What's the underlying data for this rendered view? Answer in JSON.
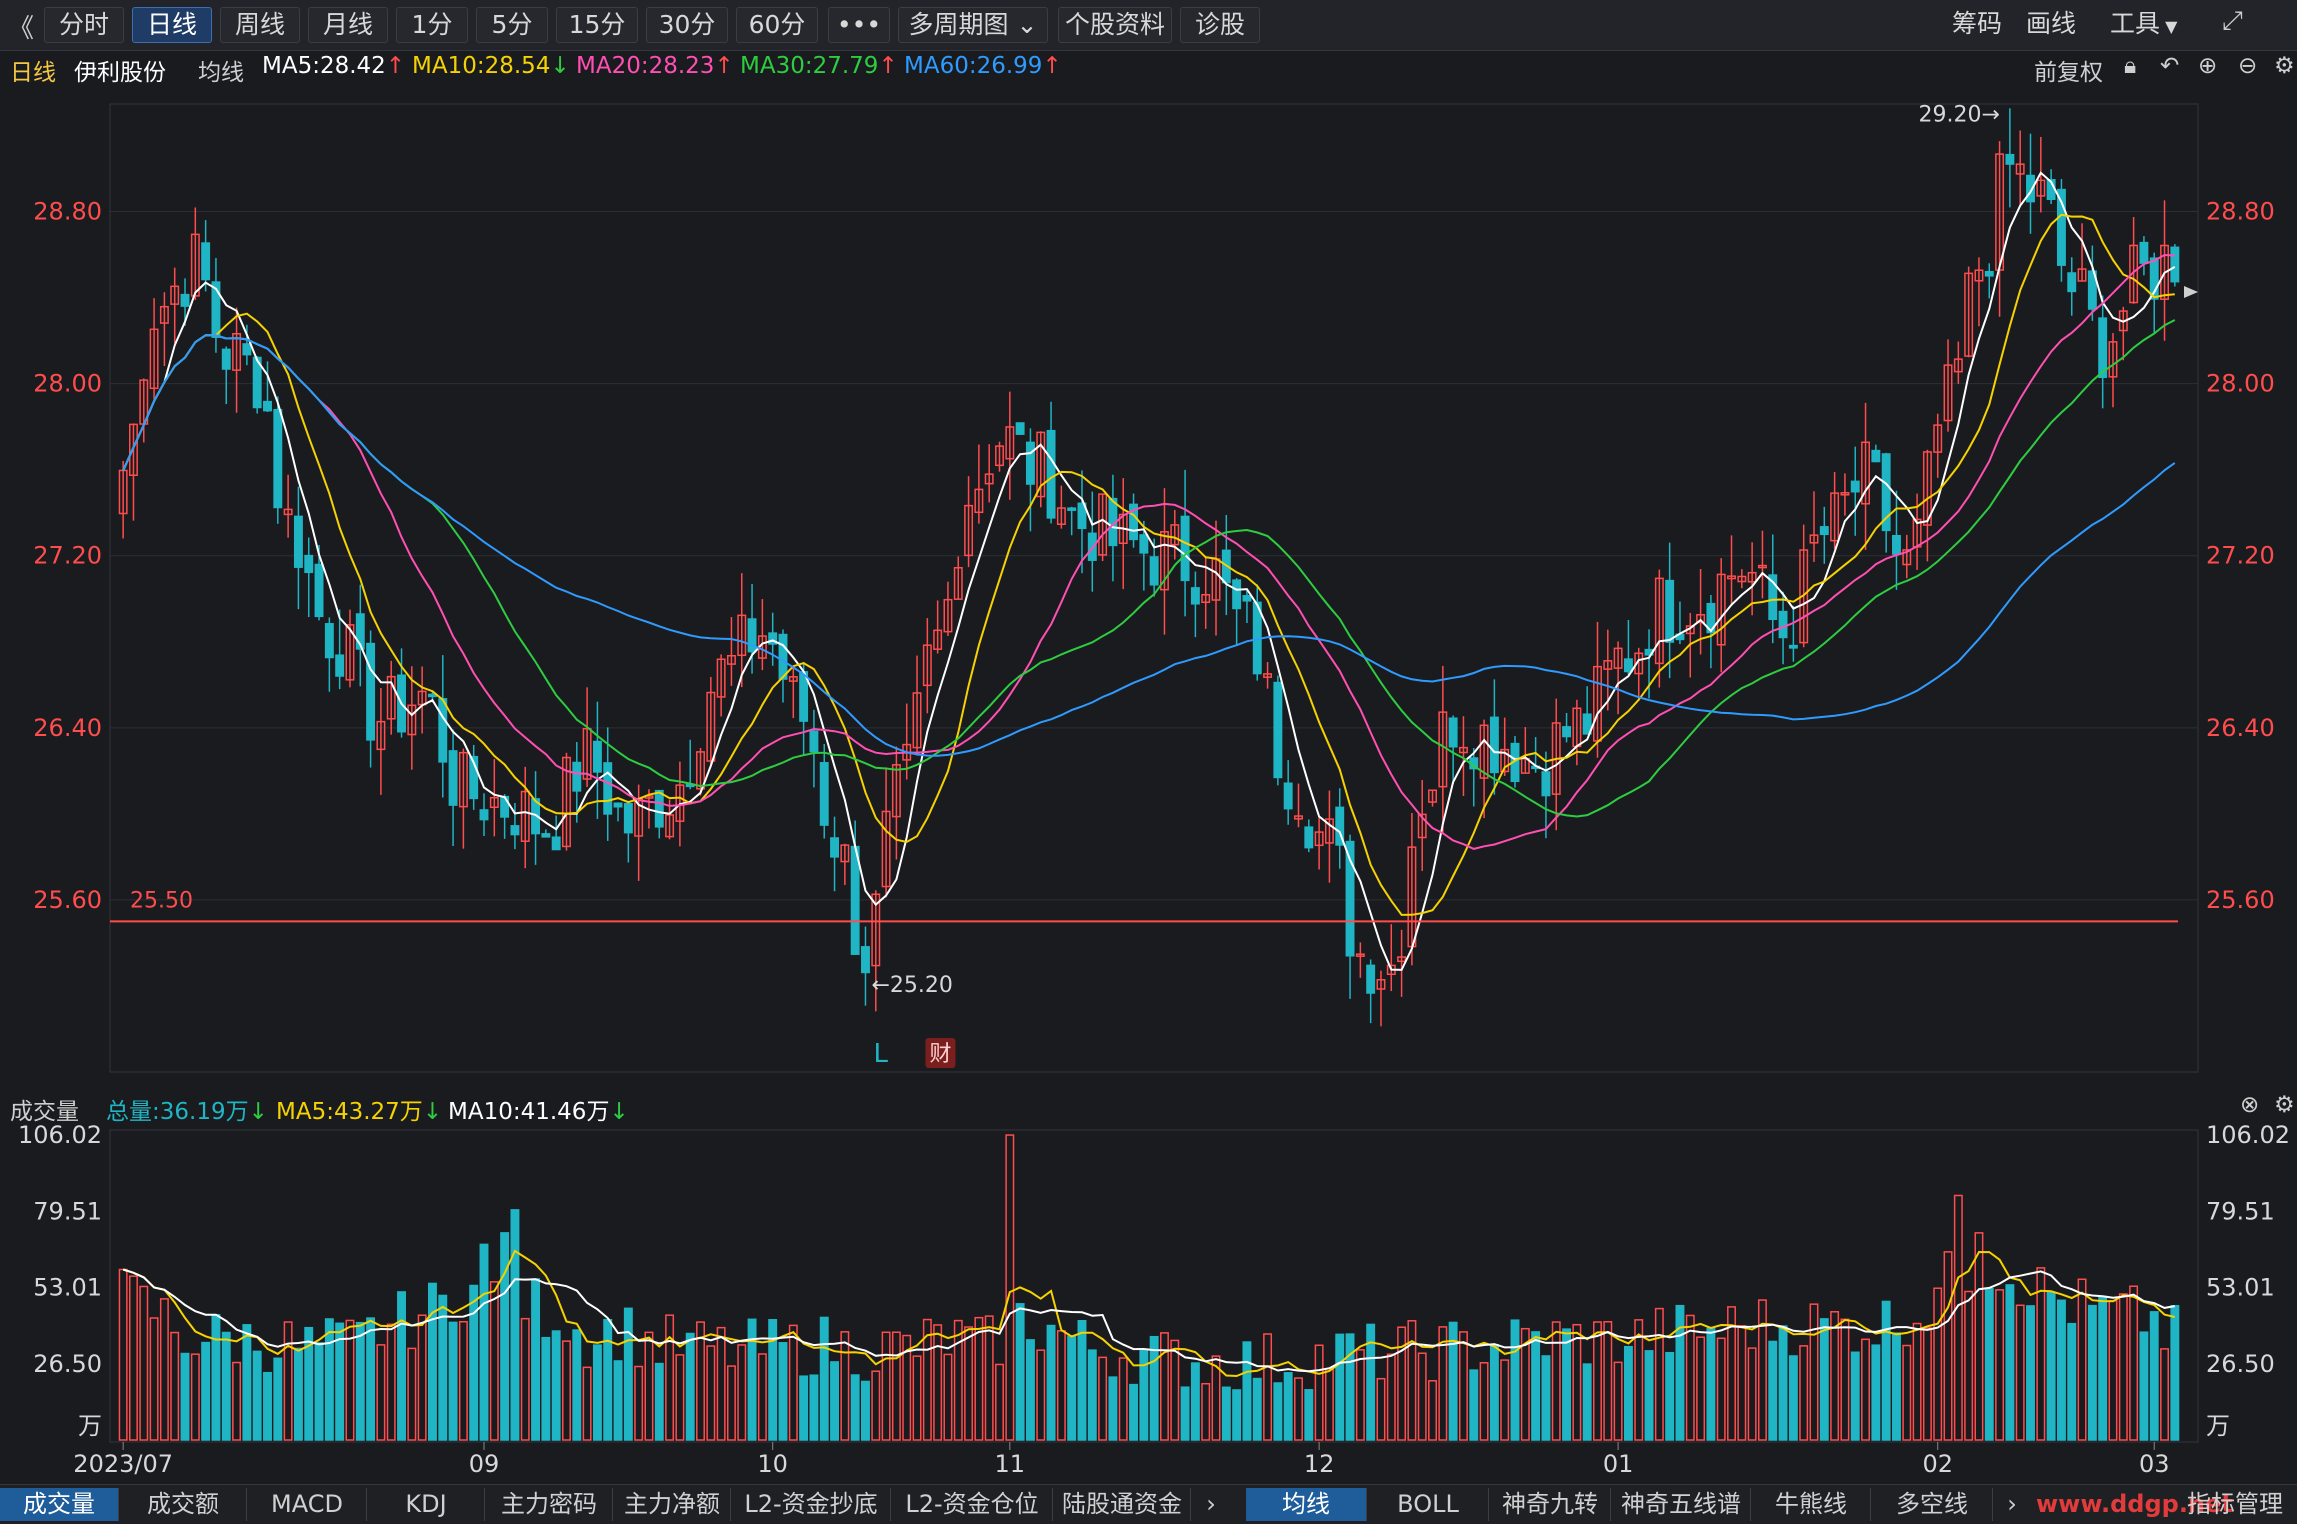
{
  "toolbar": {
    "back": "《",
    "tabs": [
      "分时",
      "日线",
      "周线",
      "月线",
      "1分",
      "5分",
      "15分",
      "30分",
      "60分",
      "•••",
      "多周期图",
      "个股资料",
      "诊股"
    ],
    "active_tab": "日线",
    "right": [
      "筹码",
      "画线",
      "工具"
    ],
    "fullscreen_icon": "⤢"
  },
  "ma_line": {
    "period": "日线",
    "stock": "伊利股份",
    "avg_label": "均线",
    "items": [
      {
        "label": "MA5:28.42",
        "arrow": "↑",
        "color": "#ffffff",
        "arrow_color": "#ff4d4d"
      },
      {
        "label": "MA10:28.54",
        "arrow": "↓",
        "color": "#f5d200",
        "arrow_color": "#2ecc40"
      },
      {
        "label": "MA20:28.23",
        "arrow": "↑",
        "color": "#ff4fb3",
        "arrow_color": "#ff4d4d"
      },
      {
        "label": "MA30:27.79",
        "arrow": "↑",
        "color": "#2ecc40",
        "arrow_color": "#ff4d4d"
      },
      {
        "label": "MA60:26.99",
        "arrow": "↑",
        "color": "#2f9bff",
        "arrow_color": "#ff4d4d"
      }
    ],
    "right_label": "前复权"
  },
  "volume_bar": {
    "label": "成交量",
    "items": [
      {
        "label": "总量:36.19万",
        "arrow": "↓",
        "color": "#1fb5c4"
      },
      {
        "label": "MA5:43.27万",
        "arrow": "↓",
        "color": "#f5d200"
      },
      {
        "label": "MA10:41.46万",
        "arrow": "↓",
        "color": "#ffffff"
      }
    ]
  },
  "bottom_tabs": {
    "left": [
      "成交量",
      "成交额",
      "MACD",
      "KDJ",
      "主力密码",
      "主力净额",
      "L2-资金抄底",
      "L2-资金仓位",
      "陆股通资金"
    ],
    "right": [
      "均线",
      "BOLL",
      "神奇九转",
      "神奇五线谱",
      "牛熊线",
      "多空线"
    ],
    "active_left": "成交量",
    "active_right": "均线",
    "end": "指标管理",
    "watermark": "www.ddgp.net"
  },
  "colors": {
    "up": "#ff4d4d",
    "down": "#1fb5c4",
    "ma5": "#ffffff",
    "ma10": "#f5d200",
    "ma20": "#ff4fb3",
    "ma30": "#2ecc40",
    "ma60": "#2f9bff",
    "support": "#ff4d4d",
    "axis_text": "#ff4d4d"
  },
  "chart_data": {
    "type": "candlestick",
    "price_ticks": [
      "28.80",
      "28.00",
      "27.20",
      "26.40",
      "25.60"
    ],
    "price_tick_values": [
      28.8,
      28.0,
      27.2,
      26.4,
      25.6
    ],
    "ylim": [
      24.8,
      29.3
    ],
    "x_labels": [
      "2023/07",
      "09",
      "10",
      "11",
      "12",
      "01",
      "02",
      "03"
    ],
    "x_label_index": [
      0,
      35,
      63,
      86,
      116,
      145,
      176,
      197
    ],
    "support_line": {
      "value": 25.5,
      "label": "25.50"
    },
    "annotations": [
      {
        "text": "29.20→",
        "value": 29.2
      },
      {
        "text": "←25.20",
        "value": 25.2
      },
      {
        "text": "L"
      },
      {
        "text": "财"
      }
    ],
    "ohlc_open": [],
    "close_keyframes": [
      [
        0,
        27.6
      ],
      [
        3,
        28.35
      ],
      [
        7,
        28.55
      ],
      [
        10,
        28.15
      ],
      [
        13,
        28.05
      ],
      [
        16,
        27.35
      ],
      [
        20,
        26.85
      ],
      [
        25,
        26.45
      ],
      [
        29,
        26.55
      ],
      [
        33,
        26.1
      ],
      [
        37,
        26.05
      ],
      [
        41,
        25.95
      ],
      [
        45,
        26.25
      ],
      [
        49,
        25.95
      ],
      [
        53,
        26.1
      ],
      [
        58,
        26.65
      ],
      [
        62,
        26.85
      ],
      [
        66,
        26.45
      ],
      [
        69,
        25.9
      ],
      [
        72,
        25.35
      ],
      [
        75,
        26.05
      ],
      [
        79,
        26.8
      ],
      [
        82,
        27.5
      ],
      [
        85,
        27.75
      ],
      [
        89,
        27.6
      ],
      [
        93,
        27.35
      ],
      [
        97,
        27.25
      ],
      [
        101,
        27.2
      ],
      [
        105,
        27.15
      ],
      [
        109,
        26.85
      ],
      [
        113,
        26.2
      ],
      [
        117,
        25.85
      ],
      [
        120,
        25.35
      ],
      [
        123,
        25.3
      ],
      [
        126,
        26.1
      ],
      [
        129,
        26.45
      ],
      [
        133,
        26.35
      ],
      [
        137,
        26.25
      ],
      [
        141,
        26.4
      ],
      [
        146,
        26.75
      ],
      [
        149,
        26.95
      ],
      [
        153,
        27.0
      ],
      [
        157,
        27.15
      ],
      [
        161,
        26.85
      ],
      [
        165,
        27.3
      ],
      [
        169,
        27.55
      ],
      [
        173,
        27.15
      ],
      [
        177,
        27.9
      ],
      [
        180,
        28.55
      ],
      [
        183,
        29.0
      ],
      [
        186,
        28.85
      ],
      [
        189,
        28.45
      ],
      [
        192,
        28.2
      ],
      [
        196,
        28.5
      ],
      [
        199,
        28.6
      ]
    ],
    "volume_ticks": [
      "106.02",
      "79.51",
      "53.01",
      "26.50",
      "万"
    ],
    "volume_tick_values": [
      106.02,
      79.51,
      53.01,
      26.5
    ],
    "volume_ylim": [
      0,
      106.02
    ],
    "volume_unit": "万",
    "volume_keyframes": [
      [
        0,
        50
      ],
      [
        3,
        45
      ],
      [
        6,
        36
      ],
      [
        10,
        35
      ],
      [
        14,
        34
      ],
      [
        18,
        32
      ],
      [
        22,
        33
      ],
      [
        26,
        40
      ],
      [
        30,
        45
      ],
      [
        33,
        52
      ],
      [
        36,
        52
      ],
      [
        39,
        48
      ],
      [
        42,
        44
      ],
      [
        45,
        36
      ],
      [
        48,
        38
      ],
      [
        52,
        33
      ],
      [
        56,
        32
      ],
      [
        60,
        31
      ],
      [
        64,
        32
      ],
      [
        68,
        33
      ],
      [
        72,
        31
      ],
      [
        76,
        32
      ],
      [
        80,
        35
      ],
      [
        84,
        33
      ],
      [
        87,
        42
      ],
      [
        90,
        38
      ],
      [
        94,
        32
      ],
      [
        98,
        30
      ],
      [
        102,
        28
      ],
      [
        106,
        27
      ],
      [
        110,
        27
      ],
      [
        114,
        28
      ],
      [
        118,
        30
      ],
      [
        122,
        30
      ],
      [
        126,
        31
      ],
      [
        130,
        32
      ],
      [
        134,
        33
      ],
      [
        138,
        35
      ],
      [
        142,
        35
      ],
      [
        146,
        35
      ],
      [
        150,
        37
      ],
      [
        154,
        38
      ],
      [
        158,
        40
      ],
      [
        162,
        40
      ],
      [
        166,
        40
      ],
      [
        170,
        40
      ],
      [
        174,
        44
      ],
      [
        177,
        55
      ],
      [
        180,
        62
      ],
      [
        183,
        58
      ],
      [
        186,
        52
      ],
      [
        189,
        47
      ],
      [
        192,
        44
      ],
      [
        196,
        43
      ],
      [
        199,
        36
      ]
    ],
    "volume_spikes": [
      [
        86,
        106
      ],
      [
        35,
        68
      ],
      [
        37,
        72
      ],
      [
        38,
        80
      ],
      [
        178,
        85
      ],
      [
        180,
        72
      ]
    ]
  }
}
